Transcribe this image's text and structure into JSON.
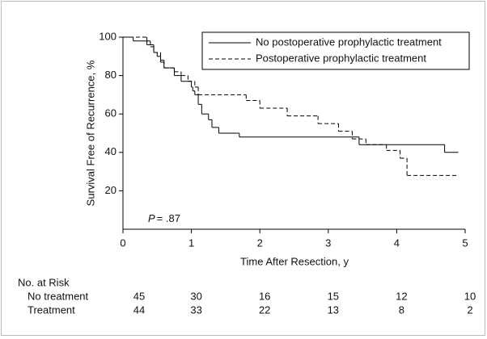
{
  "chart_data": {
    "type": "step",
    "y_label": "Survival Free of Recurrence, %",
    "x_label": "Time After Resection, y",
    "annotation": {
      "italic": "P",
      "text": "= .87"
    },
    "xlim": [
      0,
      5
    ],
    "xticks": [
      0,
      1,
      2,
      3,
      4,
      5
    ],
    "ylim": [
      0,
      100
    ],
    "yticks": [
      20,
      40,
      60,
      80,
      100
    ],
    "legend": "upper right",
    "series": [
      {
        "name": "No postoperative prophylactic treatment",
        "color": "#000000",
        "dash": "solid",
        "x": [
          0,
          0.15,
          0.35,
          0.45,
          0.5,
          0.55,
          0.6,
          0.75,
          0.85,
          1.0,
          1.02,
          1.05,
          1.1,
          1.15,
          1.25,
          1.3,
          1.4,
          1.7,
          3.3,
          3.45,
          4.7,
          4.9
        ],
        "values": [
          100,
          98,
          96,
          92,
          90,
          87,
          84,
          80,
          77,
          74,
          72,
          70,
          65,
          60,
          57,
          53,
          50,
          48,
          48,
          44,
          40,
          40
        ]
      },
      {
        "name": "Postoperative prophylactic treatment",
        "color": "#000000",
        "dash": "dashed",
        "x": [
          0,
          0.35,
          0.4,
          0.45,
          0.55,
          0.6,
          0.75,
          0.85,
          0.95,
          1.05,
          1.1,
          1.8,
          2.0,
          2.4,
          2.85,
          3.15,
          3.35,
          3.55,
          3.85,
          4.05,
          4.15,
          4.9
        ],
        "values": [
          100,
          98,
          95,
          92,
          88,
          84,
          82,
          80,
          77,
          74,
          70,
          67,
          63,
          59,
          55,
          51,
          47,
          44,
          41,
          37,
          28,
          28
        ]
      }
    ],
    "risk_table": {
      "title": "No. at Risk",
      "rows": [
        {
          "label": "No treatment",
          "counts": [
            45,
            30,
            16,
            15,
            12,
            10
          ]
        },
        {
          "label": "Treatment",
          "counts": [
            44,
            33,
            22,
            13,
            8,
            2
          ]
        }
      ]
    }
  }
}
